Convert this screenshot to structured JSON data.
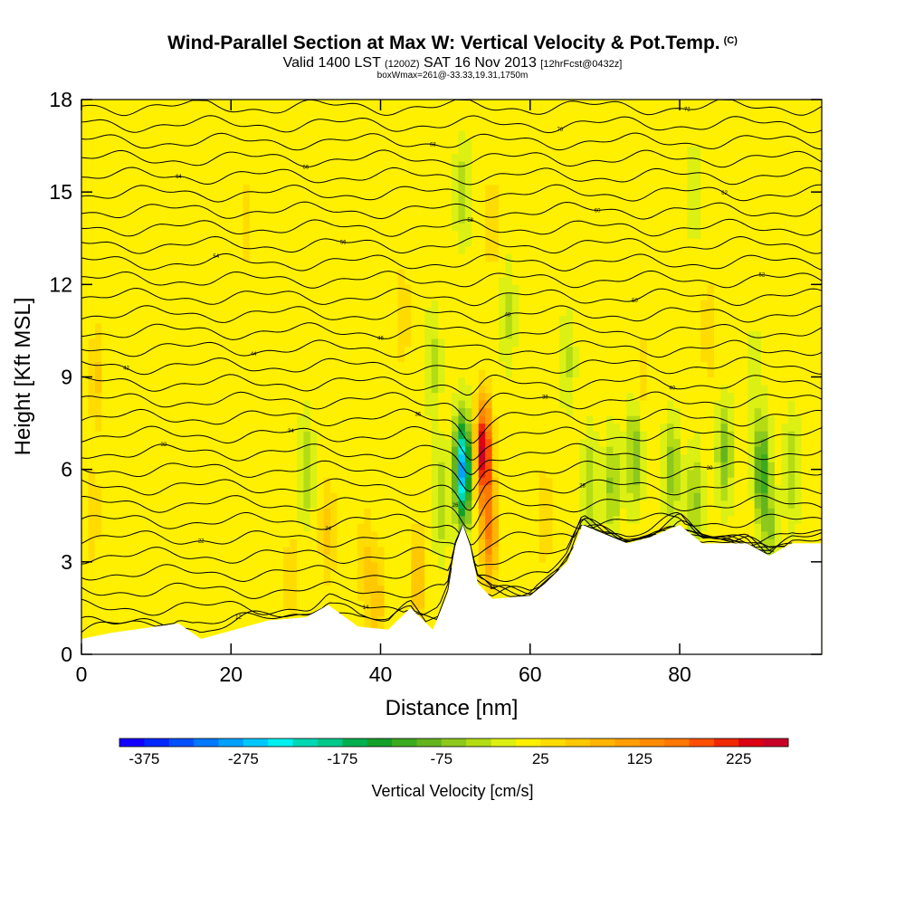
{
  "header": {
    "title": "Wind-Parallel Section at Max W: Vertical Velocity & Pot.Temp.",
    "title_mark": "(C)",
    "valid_a": "Valid 1400 LST",
    "valid_b": "(1200Z)",
    "valid_c": "SAT 16 Nov 2013",
    "valid_d": "[12hrFcst@0432z]",
    "info": "boxWmax=261@-33.33,19.31,1750m"
  },
  "chart_data": {
    "type": "heatmap",
    "xlabel": "Distance [nm]",
    "ylabel": "Height [Kft MSL]",
    "xlim": [
      0,
      99
    ],
    "ylim": [
      0,
      18
    ],
    "xticks": [
      0,
      20,
      40,
      60,
      80
    ],
    "yticks": [
      0,
      3,
      6,
      9,
      12,
      15,
      18
    ],
    "background_value_cm_s": 10,
    "colorbar": {
      "title": "Vertical Velocity [cm/s]",
      "min": -400,
      "max": 275,
      "step": 25,
      "tick_labels": [
        "-375",
        "-275",
        "-175",
        "-75",
        "25",
        "125",
        "225"
      ],
      "tick_values": [
        -375,
        -275,
        -175,
        -75,
        25,
        125,
        225
      ],
      "colors": [
        "#1400ff",
        "#0028ff",
        "#0050ff",
        "#0078ff",
        "#00a0ff",
        "#00c8ff",
        "#00f0f0",
        "#00d8b4",
        "#00c88c",
        "#00b050",
        "#14a028",
        "#3caa1e",
        "#64b41e",
        "#8cc81e",
        "#b4dc14",
        "#dcf014",
        "#fff000",
        "#ffdc00",
        "#ffc800",
        "#ffb400",
        "#ffa000",
        "#ff8c00",
        "#ff7800",
        "#ff5000",
        "#f02800",
        "#dc0014",
        "#c80028"
      ]
    },
    "terrain_kft": [
      [
        0,
        0.5
      ],
      [
        4,
        0.7
      ],
      [
        13,
        1.0
      ],
      [
        16,
        0.5
      ],
      [
        25,
        1.1
      ],
      [
        30,
        1.2
      ],
      [
        33,
        1.6
      ],
      [
        37,
        0.9
      ],
      [
        41,
        0.8
      ],
      [
        44,
        1.5
      ],
      [
        47,
        0.8
      ],
      [
        49,
        2.0
      ],
      [
        50,
        3.5
      ],
      [
        51,
        4.2
      ],
      [
        52,
        3.5
      ],
      [
        53,
        2.3
      ],
      [
        55,
        1.8
      ],
      [
        60,
        1.9
      ],
      [
        62,
        2.3
      ],
      [
        65,
        3.0
      ],
      [
        67,
        4.2
      ],
      [
        71,
        3.8
      ],
      [
        73,
        3.6
      ],
      [
        76,
        3.8
      ],
      [
        80,
        4.2
      ],
      [
        83,
        3.6
      ],
      [
        89,
        3.6
      ],
      [
        92,
        3.2
      ],
      [
        95,
        3.6
      ],
      [
        99,
        3.6
      ]
    ],
    "theta_contours_K": [
      10,
      12,
      14,
      16,
      18,
      20,
      22,
      24,
      26,
      28,
      30,
      32,
      34,
      36,
      38,
      40,
      42,
      44,
      46,
      48,
      50,
      52,
      54,
      56,
      58,
      60,
      62,
      64,
      66,
      68,
      70,
      72
    ],
    "updraft_core": {
      "x_nm": 54,
      "height_kft": 6.5,
      "max_cm_s": 261
    },
    "downdraft_core": {
      "x_nm": 51,
      "height_kft": 5.5,
      "min_cm_s": -300
    },
    "anomalies": [
      {
        "x_nm": 51.0,
        "y_kft": 6.0,
        "value": -300
      },
      {
        "x_nm": 53.8,
        "y_kft": 6.6,
        "value": 261
      },
      {
        "x_nm": 54.5,
        "y_kft": 4.0,
        "value": 140
      },
      {
        "x_nm": 45.0,
        "y_kft": 2.5,
        "value": 70
      },
      {
        "x_nm": 39.5,
        "y_kft": 1.8,
        "value": 60
      },
      {
        "x_nm": 33.0,
        "y_kft": 4.0,
        "value": 55
      },
      {
        "x_nm": 38.0,
        "y_kft": 3.0,
        "value": 45
      },
      {
        "x_nm": 2.0,
        "y_kft": 9.0,
        "value": 45
      },
      {
        "x_nm": 1.5,
        "y_kft": 4.5,
        "value": 35
      },
      {
        "x_nm": 28.0,
        "y_kft": 2.5,
        "value": 30
      },
      {
        "x_nm": 62.0,
        "y_kft": 4.5,
        "value": 40
      },
      {
        "x_nm": 48.0,
        "y_kft": 5.0,
        "value": -60
      },
      {
        "x_nm": 30.0,
        "y_kft": 6.0,
        "value": -60
      },
      {
        "x_nm": 57.0,
        "y_kft": 11.0,
        "value": -45
      },
      {
        "x_nm": 47.0,
        "y_kft": 9.5,
        "value": -50
      },
      {
        "x_nm": 43.0,
        "y_kft": 11.0,
        "value": 35
      },
      {
        "x_nm": 51.0,
        "y_kft": 15.0,
        "value": -55
      },
      {
        "x_nm": 55.0,
        "y_kft": 14.0,
        "value": 35
      },
      {
        "x_nm": 68.0,
        "y_kft": 5.5,
        "value": -60
      },
      {
        "x_nm": 71.0,
        "y_kft": 5.5,
        "value": -70
      },
      {
        "x_nm": 74.0,
        "y_kft": 6.5,
        "value": -90
      },
      {
        "x_nm": 75.0,
        "y_kft": 9.0,
        "value": 30
      },
      {
        "x_nm": 79.0,
        "y_kft": 6.0,
        "value": -80
      },
      {
        "x_nm": 82.0,
        "y_kft": 5.0,
        "value": -70
      },
      {
        "x_nm": 86.0,
        "y_kft": 6.5,
        "value": -90
      },
      {
        "x_nm": 91.0,
        "y_kft": 6.0,
        "value": -130
      },
      {
        "x_nm": 95.0,
        "y_kft": 6.0,
        "value": -60
      },
      {
        "x_nm": 92.0,
        "y_kft": 4.0,
        "value": -60
      },
      {
        "x_nm": 84.0,
        "y_kft": 10.5,
        "value": 40
      },
      {
        "x_nm": 90.0,
        "y_kft": 9.0,
        "value": -30
      },
      {
        "x_nm": 65.0,
        "y_kft": 9.5,
        "value": -40
      },
      {
        "x_nm": 22.0,
        "y_kft": 14.0,
        "value": 25
      },
      {
        "x_nm": 82.0,
        "y_kft": 15.0,
        "value": -30
      }
    ]
  }
}
